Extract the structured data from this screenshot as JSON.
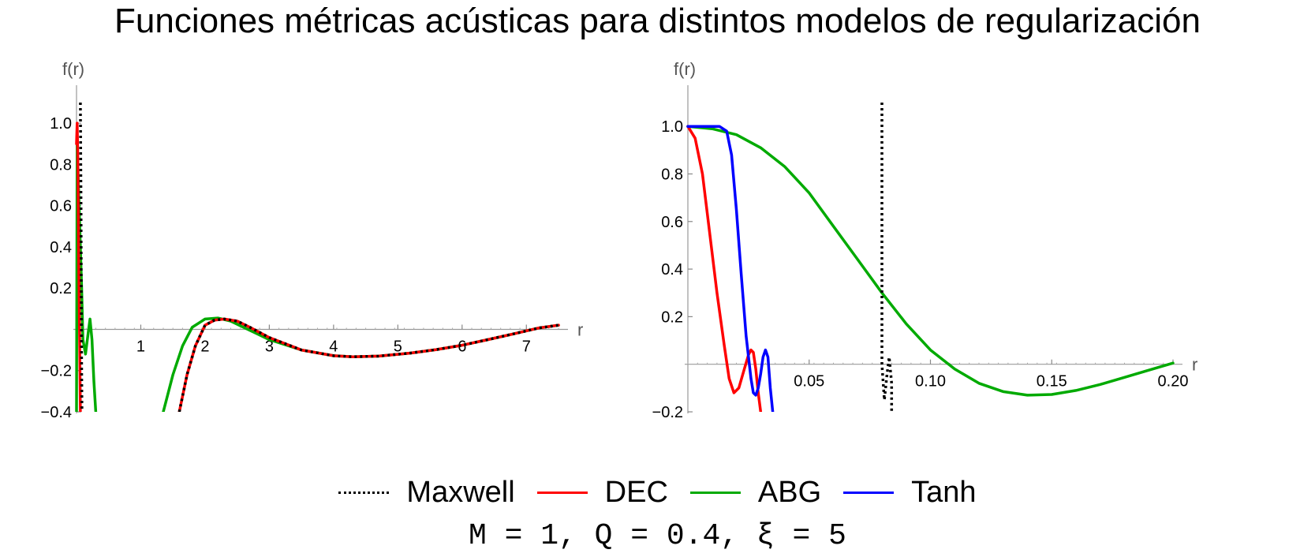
{
  "title": "Funciones métricas acústicas para distintos modelos de regularización",
  "legend": {
    "items": [
      {
        "label": "Maxwell",
        "color": "#000000",
        "dash": "dotted"
      },
      {
        "label": "DEC",
        "color": "#ff0000",
        "dash": "solid"
      },
      {
        "label": "ABG",
        "color": "#00aa00",
        "dash": "solid"
      },
      {
        "label": "Tanh",
        "color": "#0000ff",
        "dash": "solid"
      }
    ]
  },
  "params_text": "M = 1, Q = 0.4, ξ = 5",
  "chart_data": [
    {
      "type": "line",
      "xlabel": "r",
      "ylabel": "f(r)",
      "xlim": [
        0,
        7.5
      ],
      "ylim": [
        -0.4,
        1.1
      ],
      "xticks": [
        1,
        2,
        3,
        4,
        5,
        6,
        7
      ],
      "yticks": [
        -0.4,
        -0.2,
        0.2,
        0.4,
        0.6,
        0.8,
        1.0
      ],
      "xtick_labels": [
        "1",
        "2",
        "3",
        "4",
        "5",
        "6",
        "7"
      ],
      "ytick_labels": [
        "−0.4",
        "−0.2",
        "0.2",
        "0.4",
        "0.6",
        "0.8",
        "1.0"
      ],
      "series": [
        {
          "name": "ABG",
          "color": "#00aa00",
          "dash": "solid",
          "segments": [
            [
              [
                0.0,
                -0.4
              ],
              [
                0.01,
                0.9
              ],
              [
                0.04,
                0.6
              ],
              [
                0.08,
                0.2
              ],
              [
                0.1,
                -0.05
              ],
              [
                0.14,
                -0.12
              ],
              [
                0.18,
                -0.02
              ],
              [
                0.21,
                0.05
              ],
              [
                0.24,
                -0.05
              ],
              [
                0.27,
                -0.25
              ],
              [
                0.3,
                -0.4
              ]
            ],
            [
              [
                1.35,
                -0.4
              ],
              [
                1.5,
                -0.22
              ],
              [
                1.65,
                -0.08
              ],
              [
                1.8,
                0.01
              ],
              [
                2.0,
                0.05
              ],
              [
                2.2,
                0.055
              ],
              [
                2.4,
                0.04
              ],
              [
                2.6,
                0.01
              ],
              [
                2.8,
                -0.02
              ],
              [
                3.0,
                -0.05
              ],
              [
                3.5,
                -0.1
              ],
              [
                4.0,
                -0.128
              ],
              [
                4.3,
                -0.133
              ],
              [
                4.7,
                -0.13
              ],
              [
                5.2,
                -0.115
              ],
              [
                5.6,
                -0.098
              ],
              [
                6.0,
                -0.077
              ],
              [
                6.4,
                -0.05
              ],
              [
                6.8,
                -0.022
              ],
              [
                7.2,
                0.007
              ],
              [
                7.5,
                0.02
              ]
            ]
          ]
        },
        {
          "name": "DEC",
          "color": "#ff0000",
          "dash": "solid",
          "segments": [
            [
              [
                0.0,
                0.9
              ],
              [
                0.01,
                1.0
              ],
              [
                0.02,
                0.85
              ],
              [
                0.035,
                0.3
              ],
              [
                0.05,
                -0.1
              ],
              [
                0.06,
                -0.4
              ]
            ],
            [
              [
                1.6,
                -0.4
              ],
              [
                1.72,
                -0.22
              ],
              [
                1.85,
                -0.08
              ],
              [
                2.0,
                0.02
              ],
              [
                2.15,
                0.045
              ],
              [
                2.3,
                0.05
              ],
              [
                2.5,
                0.04
              ],
              [
                2.7,
                0.01
              ],
              [
                3.0,
                -0.04
              ],
              [
                3.5,
                -0.1
              ],
              [
                4.0,
                -0.128
              ],
              [
                4.3,
                -0.133
              ],
              [
                4.7,
                -0.13
              ],
              [
                5.2,
                -0.115
              ],
              [
                5.6,
                -0.098
              ],
              [
                6.0,
                -0.077
              ],
              [
                6.4,
                -0.05
              ],
              [
                6.8,
                -0.022
              ],
              [
                7.2,
                0.007
              ],
              [
                7.5,
                0.02
              ]
            ]
          ]
        },
        {
          "name": "Maxwell",
          "color": "#000000",
          "dash": "dotted",
          "segments": [
            [
              [
                0.06,
                1.1
              ],
              [
                0.07,
                0.6
              ],
              [
                0.075,
                0.1
              ],
              [
                0.08,
                -0.2
              ],
              [
                0.085,
                -0.4
              ]
            ],
            [
              [
                1.6,
                -0.4
              ],
              [
                1.72,
                -0.22
              ],
              [
                1.85,
                -0.08
              ],
              [
                2.0,
                0.02
              ],
              [
                2.15,
                0.045
              ],
              [
                2.3,
                0.05
              ],
              [
                2.5,
                0.04
              ],
              [
                2.7,
                0.01
              ],
              [
                3.0,
                -0.04
              ],
              [
                3.5,
                -0.1
              ],
              [
                4.0,
                -0.128
              ],
              [
                4.3,
                -0.133
              ],
              [
                4.7,
                -0.13
              ],
              [
                5.2,
                -0.115
              ],
              [
                5.6,
                -0.098
              ],
              [
                6.0,
                -0.077
              ],
              [
                6.4,
                -0.05
              ],
              [
                6.8,
                -0.022
              ],
              [
                7.2,
                0.007
              ],
              [
                7.5,
                0.02
              ]
            ]
          ]
        }
      ]
    },
    {
      "type": "line",
      "xlabel": "r",
      "ylabel": "f(r)",
      "xlim": [
        0,
        0.2
      ],
      "ylim": [
        -0.2,
        1.1
      ],
      "xticks": [
        0.05,
        0.1,
        0.15,
        0.2
      ],
      "yticks": [
        -0.2,
        0.2,
        0.4,
        0.6,
        0.8,
        1.0
      ],
      "xtick_labels": [
        "0.05",
        "0.10",
        "0.15",
        "0.20"
      ],
      "ytick_labels": [
        "−0.2",
        "0.2",
        "0.4",
        "0.6",
        "0.8",
        "1.0"
      ],
      "series": [
        {
          "name": "ABG",
          "color": "#00aa00",
          "dash": "solid",
          "segments": [
            [
              [
                0.0,
                1.0
              ],
              [
                0.01,
                0.99
              ],
              [
                0.02,
                0.965
              ],
              [
                0.03,
                0.91
              ],
              [
                0.04,
                0.83
              ],
              [
                0.05,
                0.72
              ],
              [
                0.06,
                0.58
              ],
              [
                0.07,
                0.44
              ],
              [
                0.08,
                0.3
              ],
              [
                0.09,
                0.17
              ],
              [
                0.1,
                0.06
              ],
              [
                0.11,
                -0.02
              ],
              [
                0.12,
                -0.08
              ],
              [
                0.13,
                -0.115
              ],
              [
                0.14,
                -0.13
              ],
              [
                0.15,
                -0.127
              ],
              [
                0.16,
                -0.11
              ],
              [
                0.17,
                -0.085
              ],
              [
                0.18,
                -0.055
              ],
              [
                0.19,
                -0.025
              ],
              [
                0.2,
                0.005
              ]
            ]
          ]
        },
        {
          "name": "DEC",
          "color": "#ff0000",
          "dash": "solid",
          "segments": [
            [
              [
                0.0,
                1.0
              ],
              [
                0.003,
                0.95
              ],
              [
                0.006,
                0.8
              ],
              [
                0.009,
                0.55
              ],
              [
                0.012,
                0.3
              ],
              [
                0.015,
                0.08
              ],
              [
                0.017,
                -0.06
              ],
              [
                0.019,
                -0.12
              ],
              [
                0.021,
                -0.1
              ],
              [
                0.023,
                -0.03
              ],
              [
                0.025,
                0.04
              ],
              [
                0.026,
                0.06
              ],
              [
                0.027,
                0.05
              ],
              [
                0.028,
                -0.02
              ],
              [
                0.029,
                -0.12
              ],
              [
                0.03,
                -0.2
              ]
            ]
          ]
        },
        {
          "name": "Tanh",
          "color": "#0000ff",
          "dash": "solid",
          "segments": [
            [
              [
                0.0,
                1.0
              ],
              [
                0.013,
                1.0
              ],
              [
                0.016,
                0.98
              ],
              [
                0.018,
                0.88
              ],
              [
                0.02,
                0.65
              ],
              [
                0.022,
                0.38
              ],
              [
                0.024,
                0.12
              ],
              [
                0.026,
                -0.06
              ],
              [
                0.027,
                -0.12
              ],
              [
                0.028,
                -0.13
              ],
              [
                0.029,
                -0.1
              ],
              [
                0.03,
                -0.04
              ],
              [
                0.031,
                0.03
              ],
              [
                0.032,
                0.06
              ],
              [
                0.033,
                0.03
              ],
              [
                0.034,
                -0.1
              ],
              [
                0.035,
                -0.2
              ]
            ]
          ]
        },
        {
          "name": "Maxwell",
          "color": "#000000",
          "dash": "dotted",
          "segments": [
            [
              [
                0.08,
                1.1
              ],
              [
                0.08,
                0.0
              ],
              [
                0.081,
                -0.15
              ],
              [
                0.082,
                -0.05
              ],
              [
                0.083,
                0.03
              ],
              [
                0.084,
                -0.08
              ],
              [
                0.084,
                -0.2
              ]
            ]
          ]
        }
      ]
    }
  ]
}
